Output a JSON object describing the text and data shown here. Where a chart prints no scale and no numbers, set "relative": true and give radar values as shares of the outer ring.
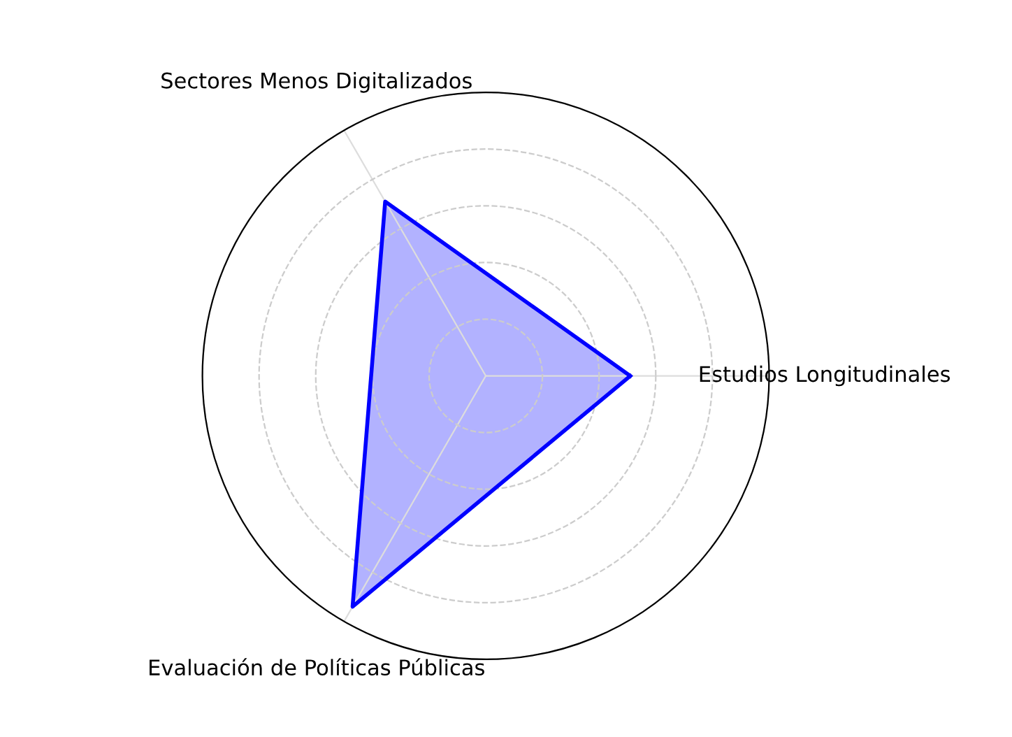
{
  "chart_data": {
    "type": "radar",
    "relative": true,
    "categories": [
      "Estudios Longitudinales",
      "Evaluación de Políticas Públicas",
      "Sectores Menos Digitalizados"
    ],
    "series": [
      {
        "color": "#0000ff",
        "values": [
          0.51,
          0.94,
          0.71
        ]
      }
    ],
    "grid": true,
    "line_style": "solid",
    "marker": "none"
  }
}
